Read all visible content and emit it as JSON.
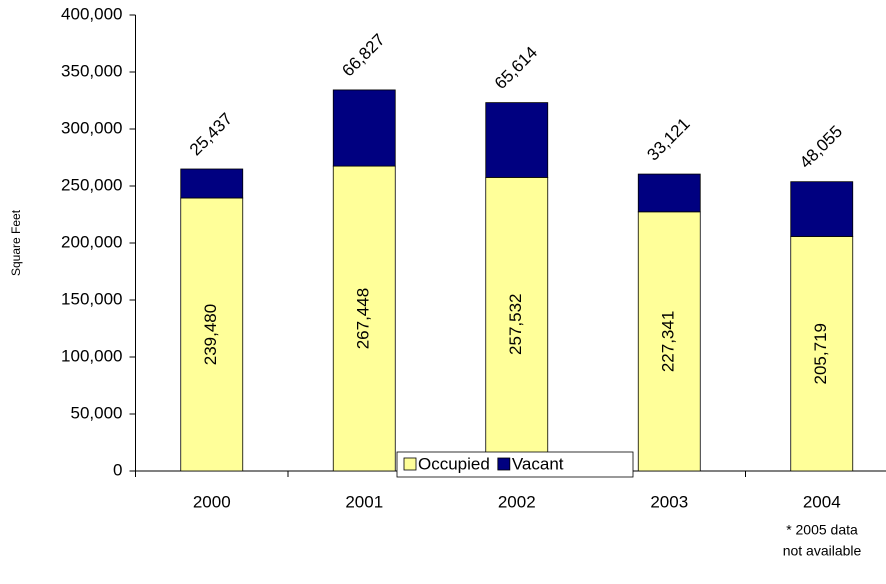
{
  "chart_data": {
    "type": "stacked_bar",
    "y_label": "Square Feet",
    "categories": [
      "2000",
      "2001",
      "2002",
      "2003",
      "2004"
    ],
    "series": [
      {
        "name": "Occupied",
        "color": "#ffff99",
        "values": [
          239480,
          267448,
          257532,
          227341,
          205719
        ],
        "value_labels": [
          "239,480",
          "267,448",
          "257,532",
          "227,341",
          "205,719"
        ]
      },
      {
        "name": "Vacant",
        "color": "#000080",
        "values": [
          25437,
          66827,
          65614,
          33121,
          48055
        ],
        "value_labels": [
          "25,437",
          "66,827",
          "65,614",
          "33,121",
          "48,055"
        ]
      }
    ],
    "ylim": [
      0,
      400000
    ],
    "yticks": [
      0,
      {
        "value": 50000,
        "label": "50,000"
      },
      {
        "value": 100000,
        "label": "100,000"
      },
      {
        "value": 150000,
        "label": "150,000"
      },
      {
        "value": 200000,
        "label": "200,000"
      },
      {
        "value": 250000,
        "label": "250,000"
      },
      {
        "value": 300000,
        "label": "300,000"
      },
      {
        "value": 350000,
        "label": "350,000"
      },
      {
        "value": 400000,
        "label": "400,000"
      }
    ],
    "annotation": [
      "* 2005 data",
      "not available"
    ]
  }
}
